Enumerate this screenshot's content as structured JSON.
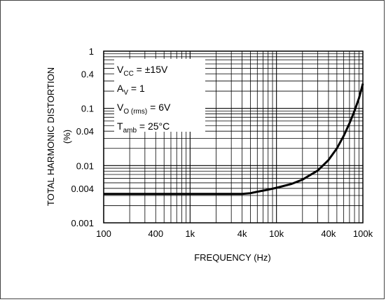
{
  "chart_data": {
    "type": "line",
    "xlabel": "FREQUENCY (Hz)",
    "ylabel": "TOTAL HARMONIC DISTORTION",
    "yunit": "(%)",
    "xscale": "log",
    "yscale": "log",
    "xlim": [
      100,
      100000
    ],
    "ylim": [
      0.001,
      1
    ],
    "grid": true,
    "xticks": [
      {
        "value": 100,
        "label": "100"
      },
      {
        "value": 400,
        "label": "400"
      },
      {
        "value": 1000,
        "label": "1k"
      },
      {
        "value": 4000,
        "label": "4k"
      },
      {
        "value": 10000,
        "label": "10k"
      },
      {
        "value": 40000,
        "label": "40k"
      },
      {
        "value": 100000,
        "label": "100k"
      }
    ],
    "yticks": [
      {
        "value": 1,
        "label": "1"
      },
      {
        "value": 0.4,
        "label": "0.4"
      },
      {
        "value": 0.1,
        "label": "0.1"
      },
      {
        "value": 0.04,
        "label": "0.04"
      },
      {
        "value": 0.01,
        "label": "0.01"
      },
      {
        "value": 0.004,
        "label": "0.004"
      },
      {
        "value": 0.001,
        "label": "0.001"
      }
    ],
    "annotations": [
      {
        "base": "V",
        "sub": "CC",
        "rest": " = ±15V"
      },
      {
        "base": "A",
        "sub": "V",
        "rest": " = 1"
      },
      {
        "base": "V",
        "sub": "O (rms)",
        "rest": " = 6V"
      },
      {
        "base": "T",
        "sub": "amb",
        "rest": " = 25°C"
      }
    ],
    "series": [
      {
        "x": [
          100,
          500,
          1000,
          2000,
          4000,
          5000,
          6000,
          8000,
          10000,
          15000,
          20000,
          30000,
          40000,
          50000,
          60000,
          70000,
          80000,
          90000,
          100000
        ],
        "y": [
          0.0032,
          0.0032,
          0.0032,
          0.0032,
          0.0032,
          0.0033,
          0.0035,
          0.0038,
          0.0041,
          0.0048,
          0.0057,
          0.0082,
          0.0125,
          0.02,
          0.033,
          0.055,
          0.09,
          0.15,
          0.27
        ]
      }
    ]
  }
}
